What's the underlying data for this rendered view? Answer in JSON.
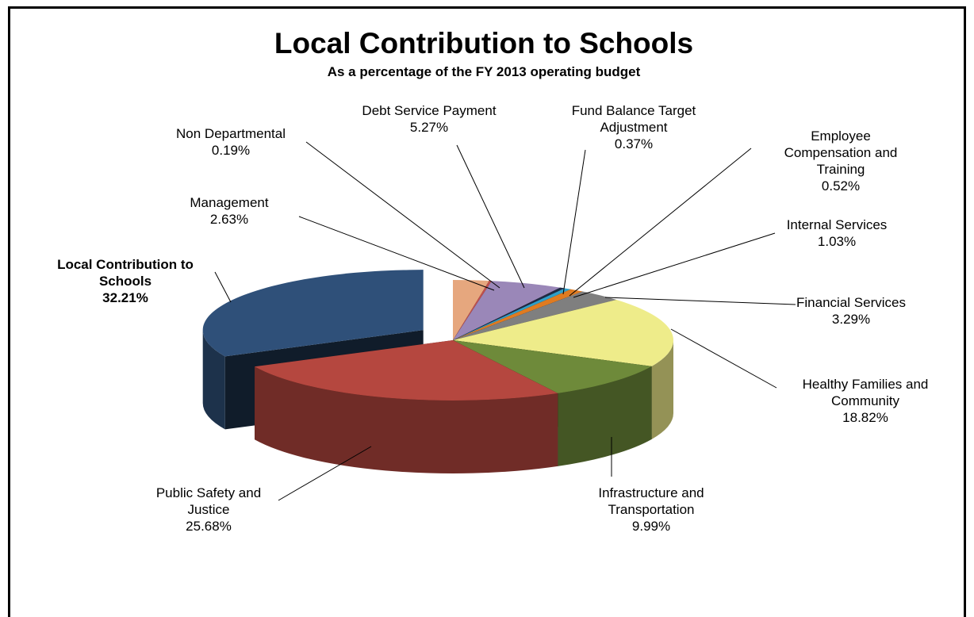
{
  "chart_data": {
    "type": "pie",
    "variant": "3d-exploded",
    "title": "Local Contribution to Schools",
    "subtitle": "As a percentage of the FY 2013 operating budget",
    "legend": "none",
    "exploded": "Local Contribution to Schools",
    "slices": [
      {
        "name": "Management",
        "value": 2.63,
        "value_label": "2.63%",
        "color": "#E6A77E"
      },
      {
        "name": "Non Departmental",
        "value": 0.19,
        "value_label": "0.19%",
        "color": "#C0504D"
      },
      {
        "name": "Debt Service Payment",
        "value": 5.27,
        "value_label": "5.27%",
        "color": "#9A87B8"
      },
      {
        "name": "Fund Balance Target Adjustment",
        "value": 0.37,
        "value_label": "0.37%",
        "color": "#1F2A44"
      },
      {
        "name": "Employee Compensation and Training",
        "value": 0.52,
        "value_label": "0.52%",
        "color": "#2F9FC8"
      },
      {
        "name": "Internal Services",
        "value": 1.03,
        "value_label": "1.03%",
        "color": "#E07B20"
      },
      {
        "name": "Financial Services",
        "value": 3.29,
        "value_label": "3.29%",
        "color": "#7F7F7F"
      },
      {
        "name": "Healthy Families and Community",
        "value": 18.82,
        "value_label": "18.82%",
        "color": "#EEEC8A"
      },
      {
        "name": "Infrastructure and Transportation",
        "value": 9.99,
        "value_label": "9.99%",
        "color": "#6E8A3A"
      },
      {
        "name": "Public Safety and Justice",
        "value": 25.68,
        "value_label": "25.68%",
        "color": "#B5473F"
      },
      {
        "name": "Local Contribution to Schools",
        "value": 32.21,
        "value_label": "32.21%",
        "color": "#2F5079"
      }
    ],
    "labels": [
      {
        "slice": 0,
        "lines": [
          "Management",
          "2.63%"
        ]
      },
      {
        "slice": 1,
        "lines": [
          "Non Departmental",
          "0.19%"
        ]
      },
      {
        "slice": 2,
        "lines": [
          "Debt Service Payment",
          "5.27%"
        ]
      },
      {
        "slice": 3,
        "lines": [
          "Fund Balance Target",
          "Adjustment",
          "0.37%"
        ]
      },
      {
        "slice": 4,
        "lines": [
          "Employee",
          "Compensation and",
          "Training",
          "0.52%"
        ]
      },
      {
        "slice": 5,
        "lines": [
          "Internal Services",
          "1.03%"
        ]
      },
      {
        "slice": 6,
        "lines": [
          "Financial Services",
          "3.29%"
        ]
      },
      {
        "slice": 7,
        "lines": [
          "Healthy Families and",
          "Community",
          "18.82%"
        ]
      },
      {
        "slice": 8,
        "lines": [
          "Infrastructure and",
          "Transportation",
          "9.99%"
        ]
      },
      {
        "slice": 9,
        "lines": [
          "Public Safety and",
          "Justice",
          "25.68%"
        ]
      },
      {
        "slice": 10,
        "lines": [
          "Local Contribution to",
          "Schools",
          "32.21%"
        ],
        "bold": true
      }
    ]
  }
}
